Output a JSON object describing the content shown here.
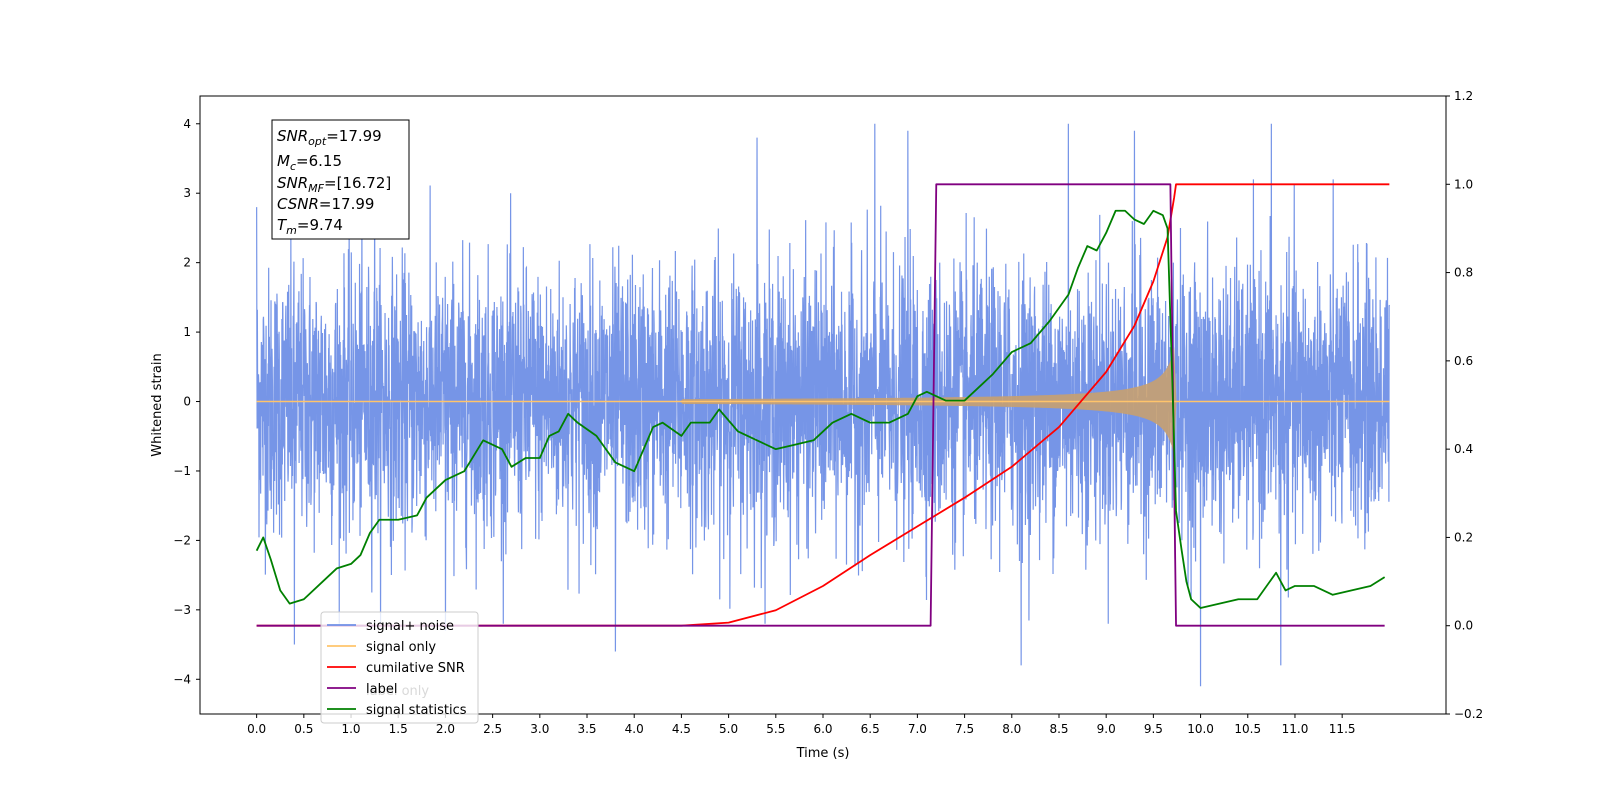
{
  "chart_data": {
    "type": "line",
    "xlabel": "Time (s)",
    "ylabel": "Whitened strain",
    "x_ticks": [
      "0.0",
      "0.5",
      "1.0",
      "1.5",
      "2.0",
      "2.5",
      "3.0",
      "3.5",
      "4.0",
      "4.5",
      "5.0",
      "5.5",
      "6.0",
      "6.5",
      "7.0",
      "7.5",
      "8.0",
      "8.5",
      "9.0",
      "9.5",
      "10.0",
      "10.5",
      "11.0",
      "11.5"
    ],
    "y_ticks_left": [
      "−4",
      "−3",
      "−2",
      "−1",
      "0",
      "1",
      "2",
      "3",
      "4"
    ],
    "y_ticks_right": [
      "−0.2",
      "0.0",
      "0.2",
      "0.4",
      "0.6",
      "0.8",
      "1.0",
      "1.2"
    ],
    "xlim": [
      -0.6,
      12.6
    ],
    "ylim_left": [
      -4.5,
      4.4
    ],
    "ylim_right": [
      -0.2,
      1.2
    ],
    "annotation": {
      "snr_opt": {
        "base": "SNR",
        "sub": "opt",
        "rest": "=17.99"
      },
      "mc": {
        "base": "M",
        "sub": "c",
        "rest": "=6.15"
      },
      "snr_mf": {
        "base": "SNR",
        "sub": "MF",
        "rest": "=[16.72]"
      },
      "csnr": {
        "base": "CSNR",
        "rest": "=17.99"
      },
      "tm": {
        "base": "T",
        "sub": "m",
        "rest": "=9.74"
      }
    },
    "legend": {
      "placement": "lower-left",
      "entries": [
        {
          "label": "signal+ noise",
          "color": "#6f8fe6"
        },
        {
          "label": "signal only",
          "color": "#ffc46b"
        },
        {
          "label": "cumilative SNR",
          "color": "#ff0000"
        },
        {
          "label": "label",
          "color": "#800080"
        },
        {
          "label": "signal statistics",
          "color": "#008000"
        }
      ],
      "hidden_label": "label only"
    },
    "series": [
      {
        "name": "signal+ noise",
        "axis": "left",
        "color": "#6f8fe6",
        "x_range": [
          0.0,
          12.0
        ],
        "noise_std": 0.95,
        "peaks": [
          {
            "x": 0.0,
            "y": 2.8
          },
          {
            "x": 0.4,
            "y": -3.5
          },
          {
            "x": 1.25,
            "y": 3.7
          },
          {
            "x": 2.0,
            "y": -3.3
          },
          {
            "x": 3.8,
            "y": -3.6
          },
          {
            "x": 5.3,
            "y": 3.8
          },
          {
            "x": 6.55,
            "y": 4.0
          },
          {
            "x": 6.9,
            "y": 3.9
          },
          {
            "x": 8.1,
            "y": -3.8
          },
          {
            "x": 8.6,
            "y": 4.0
          },
          {
            "x": 9.3,
            "y": 3.9
          },
          {
            "x": 10.0,
            "y": -4.1
          },
          {
            "x": 10.75,
            "y": 4.0
          },
          {
            "x": 10.85,
            "y": -3.8
          }
        ]
      },
      {
        "name": "signal only",
        "axis": "left",
        "color": "#c8a070",
        "chirp_start": 4.5,
        "merger_time": 9.74,
        "max_amplitude": 1.6
      },
      {
        "name": "cumilative SNR",
        "axis": "right",
        "color": "#ff0000",
        "x": [
          0.0,
          4.5,
          5.0,
          5.5,
          6.0,
          6.5,
          7.0,
          7.5,
          8.0,
          8.5,
          9.0,
          9.3,
          9.5,
          9.65,
          9.72,
          9.74,
          12.0
        ],
        "y": [
          0.0,
          0.0,
          0.007,
          0.035,
          0.09,
          0.16,
          0.225,
          0.29,
          0.36,
          0.45,
          0.575,
          0.68,
          0.78,
          0.88,
          0.97,
          1.0,
          1.0
        ]
      },
      {
        "name": "label",
        "axis": "right",
        "color": "#800080",
        "x": [
          0.0,
          7.14,
          7.2,
          9.68,
          9.74,
          11.95
        ],
        "y": [
          0.0,
          0.0,
          1.0,
          1.0,
          0.0,
          0.0
        ]
      },
      {
        "name": "signal statistics",
        "axis": "right",
        "color": "#008000",
        "x": [
          0.0,
          0.07,
          0.15,
          0.25,
          0.35,
          0.5,
          0.7,
          0.85,
          1.0,
          1.1,
          1.2,
          1.3,
          1.5,
          1.7,
          1.8,
          2.0,
          2.2,
          2.4,
          2.6,
          2.7,
          2.85,
          3.0,
          3.1,
          3.2,
          3.3,
          3.4,
          3.6,
          3.8,
          4.0,
          4.2,
          4.3,
          4.5,
          4.6,
          4.8,
          4.9,
          5.1,
          5.3,
          5.5,
          5.7,
          5.9,
          6.1,
          6.3,
          6.5,
          6.7,
          6.9,
          7.0,
          7.1,
          7.3,
          7.5,
          7.7,
          7.8,
          8.0,
          8.2,
          8.4,
          8.5,
          8.6,
          8.7,
          8.8,
          8.9,
          9.0,
          9.1,
          9.2,
          9.3,
          9.4,
          9.5,
          9.6,
          9.65,
          9.7,
          9.74,
          9.8,
          9.85,
          9.9,
          10.0,
          10.2,
          10.4,
          10.6,
          10.8,
          10.9,
          11.0,
          11.2,
          11.4,
          11.6,
          11.8,
          11.95
        ],
        "y": [
          0.17,
          0.2,
          0.15,
          0.08,
          0.05,
          0.06,
          0.1,
          0.13,
          0.14,
          0.16,
          0.21,
          0.24,
          0.24,
          0.25,
          0.29,
          0.33,
          0.35,
          0.42,
          0.4,
          0.36,
          0.38,
          0.38,
          0.43,
          0.44,
          0.48,
          0.46,
          0.43,
          0.37,
          0.35,
          0.45,
          0.46,
          0.43,
          0.46,
          0.46,
          0.49,
          0.44,
          0.42,
          0.4,
          0.41,
          0.42,
          0.46,
          0.48,
          0.46,
          0.46,
          0.48,
          0.52,
          0.53,
          0.51,
          0.51,
          0.55,
          0.57,
          0.62,
          0.64,
          0.69,
          0.72,
          0.75,
          0.81,
          0.86,
          0.85,
          0.89,
          0.94,
          0.94,
          0.92,
          0.91,
          0.94,
          0.93,
          0.9,
          0.56,
          0.26,
          0.17,
          0.1,
          0.06,
          0.04,
          0.05,
          0.06,
          0.06,
          0.12,
          0.08,
          0.09,
          0.09,
          0.07,
          0.08,
          0.09,
          0.11
        ]
      }
    ]
  }
}
